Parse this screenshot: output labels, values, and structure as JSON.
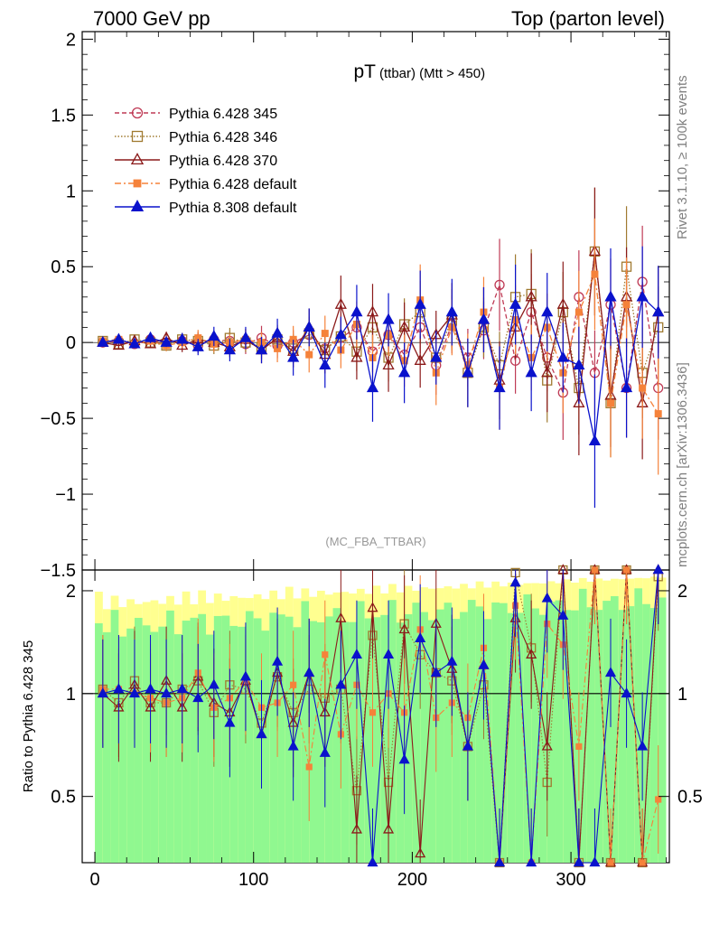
{
  "header": {
    "left": "7000 GeV pp",
    "right": "Top (parton level)"
  },
  "side_labels": {
    "rivet": "Rivet 3.1.10, ≥ 100k events",
    "mcplots": "mcplots.cern.ch [arXiv:1306.3436]"
  },
  "chart_data": [
    {
      "type": "line",
      "title_main": "pT",
      "title_sub": "(ttbar) (Mtt > 450)",
      "watermark": "(MC_FBA_TTBAR)",
      "xlabel": "",
      "ylabel": "",
      "xlim": [
        -8,
        362
      ],
      "ylim": [
        -1.5,
        2.05
      ],
      "yticks": [
        -1.5,
        -1,
        -0.5,
        0,
        0.5,
        1,
        1.5,
        2
      ],
      "ytick_labels": [
        "−1.5",
        "−1",
        "−0.5",
        "0",
        "0.5",
        "1",
        "1.5",
        "2"
      ],
      "grid": false,
      "legend_position": "top-left",
      "series": [
        {
          "name": "Pythia 6.428 345",
          "color": "#bf3a55",
          "marker": "open-circle",
          "line": "dashed",
          "x": [
            5,
            15,
            25,
            35,
            45,
            55,
            65,
            75,
            85,
            95,
            105,
            115,
            125,
            135,
            145,
            155,
            165,
            175,
            185,
            195,
            205,
            215,
            225,
            235,
            245,
            255,
            265,
            275,
            285,
            295,
            305,
            315,
            325,
            335,
            345,
            355
          ],
          "y": [
            0.0,
            0.01,
            -0.01,
            0.02,
            0.0,
            0.01,
            -0.02,
            0.02,
            0.01,
            -0.01,
            0.03,
            -0.02,
            0.0,
            0.05,
            -0.04,
            0.03,
            0.1,
            -0.06,
            0.05,
            -0.08,
            0.1,
            -0.15,
            0.12,
            -0.1,
            0.08,
            0.38,
            -0.12,
            0.2,
            -0.1,
            -0.33,
            0.3,
            -0.2,
            0.25,
            -0.3,
            0.4,
            -0.3
          ]
        },
        {
          "name": "Pythia 6.428 346",
          "color": "#a07a30",
          "marker": "open-square",
          "line": "dotted",
          "x": [
            5,
            15,
            25,
            35,
            45,
            55,
            65,
            75,
            85,
            95,
            105,
            115,
            125,
            135,
            145,
            155,
            165,
            175,
            185,
            195,
            205,
            215,
            225,
            235,
            245,
            255,
            265,
            275,
            285,
            295,
            305,
            315,
            325,
            335,
            345,
            355
          ],
          "y": [
            0.01,
            -0.01,
            0.02,
            0.0,
            -0.02,
            0.02,
            0.01,
            -0.02,
            0.03,
            0.0,
            -0.03,
            0.02,
            -0.04,
            0.06,
            -0.05,
            0.04,
            -0.06,
            0.1,
            -0.1,
            0.12,
            0.2,
            -0.1,
            0.15,
            -0.2,
            0.1,
            -0.15,
            0.3,
            0.32,
            -0.25,
            0.2,
            -0.3,
            0.6,
            -0.4,
            0.5,
            -0.2,
            0.1
          ]
        },
        {
          "name": "Pythia 6.428 370",
          "color": "#8b1a1a",
          "marker": "open-triangle",
          "line": "solid",
          "x": [
            5,
            15,
            25,
            35,
            45,
            55,
            65,
            75,
            85,
            95,
            105,
            115,
            125,
            135,
            145,
            155,
            165,
            175,
            185,
            195,
            205,
            215,
            225,
            235,
            245,
            255,
            265,
            275,
            285,
            295,
            305,
            315,
            325,
            335,
            345,
            355
          ],
          "y": [
            0.0,
            -0.02,
            0.01,
            -0.01,
            0.03,
            -0.02,
            0.02,
            0.0,
            -0.03,
            0.02,
            -0.05,
            0.03,
            -0.06,
            0.1,
            -0.08,
            0.25,
            -0.1,
            0.2,
            -0.15,
            0.1,
            -0.12,
            0.05,
            0.18,
            -0.2,
            0.15,
            -0.25,
            0.1,
            0.3,
            -0.2,
            0.25,
            -0.4,
            0.6,
            -0.35,
            0.3,
            -0.4,
            0.2
          ]
        },
        {
          "name": "Pythia 6.428 default",
          "color": "#f5823a",
          "marker": "filled-square",
          "line": "dashdot",
          "x": [
            5,
            15,
            25,
            35,
            45,
            55,
            65,
            75,
            85,
            95,
            105,
            115,
            125,
            135,
            145,
            155,
            165,
            175,
            185,
            195,
            205,
            215,
            225,
            235,
            245,
            255,
            265,
            275,
            285,
            295,
            305,
            315,
            325,
            335,
            345,
            355
          ],
          "y": [
            0.01,
            0.02,
            -0.01,
            0.01,
            -0.02,
            0.0,
            0.03,
            -0.01,
            0.0,
            0.02,
            0.0,
            -0.04,
            0.02,
            -0.08,
            0.06,
            -0.05,
            0.12,
            -0.1,
            0.05,
            -0.12,
            0.28,
            -0.2,
            0.1,
            -0.15,
            0.2,
            -0.3,
            0.15,
            -0.1,
            0.1,
            -0.2,
            0.2,
            0.45,
            -0.4,
            0.25,
            -0.3,
            -0.47
          ]
        },
        {
          "name": "Pythia 8.308 default",
          "color": "#0a12cc",
          "marker": "filled-triangle",
          "line": "solid",
          "x": [
            5,
            15,
            25,
            35,
            45,
            55,
            65,
            75,
            85,
            95,
            105,
            115,
            125,
            135,
            145,
            155,
            165,
            175,
            185,
            195,
            205,
            215,
            225,
            235,
            245,
            255,
            265,
            275,
            285,
            295,
            305,
            315,
            325,
            335,
            345,
            355
          ],
          "y": [
            0.0,
            0.02,
            -0.01,
            0.03,
            0.0,
            0.02,
            -0.03,
            0.04,
            -0.05,
            0.03,
            -0.05,
            0.06,
            -0.1,
            0.1,
            -0.15,
            0.05,
            0.2,
            -0.3,
            0.15,
            -0.2,
            0.25,
            -0.1,
            0.2,
            -0.2,
            0.15,
            -0.3,
            0.25,
            -0.2,
            0.2,
            -0.1,
            -0.15,
            -0.65,
            0.3,
            -0.3,
            0.3,
            0.2
          ]
        }
      ]
    },
    {
      "type": "line",
      "ylabel": "Ratio to Pythia 6.428 345",
      "xlim": [
        -8,
        362
      ],
      "ylim": [
        0.32,
        2.3
      ],
      "xticks": [
        0,
        100,
        200,
        300
      ],
      "yticks": [
        0.5,
        1,
        2
      ],
      "ytick_labels": [
        "0.5",
        "1",
        "2"
      ],
      "reference_line": 1,
      "band_colors": {
        "inner": "#90f890",
        "outer": "#ffff90"
      }
    }
  ]
}
